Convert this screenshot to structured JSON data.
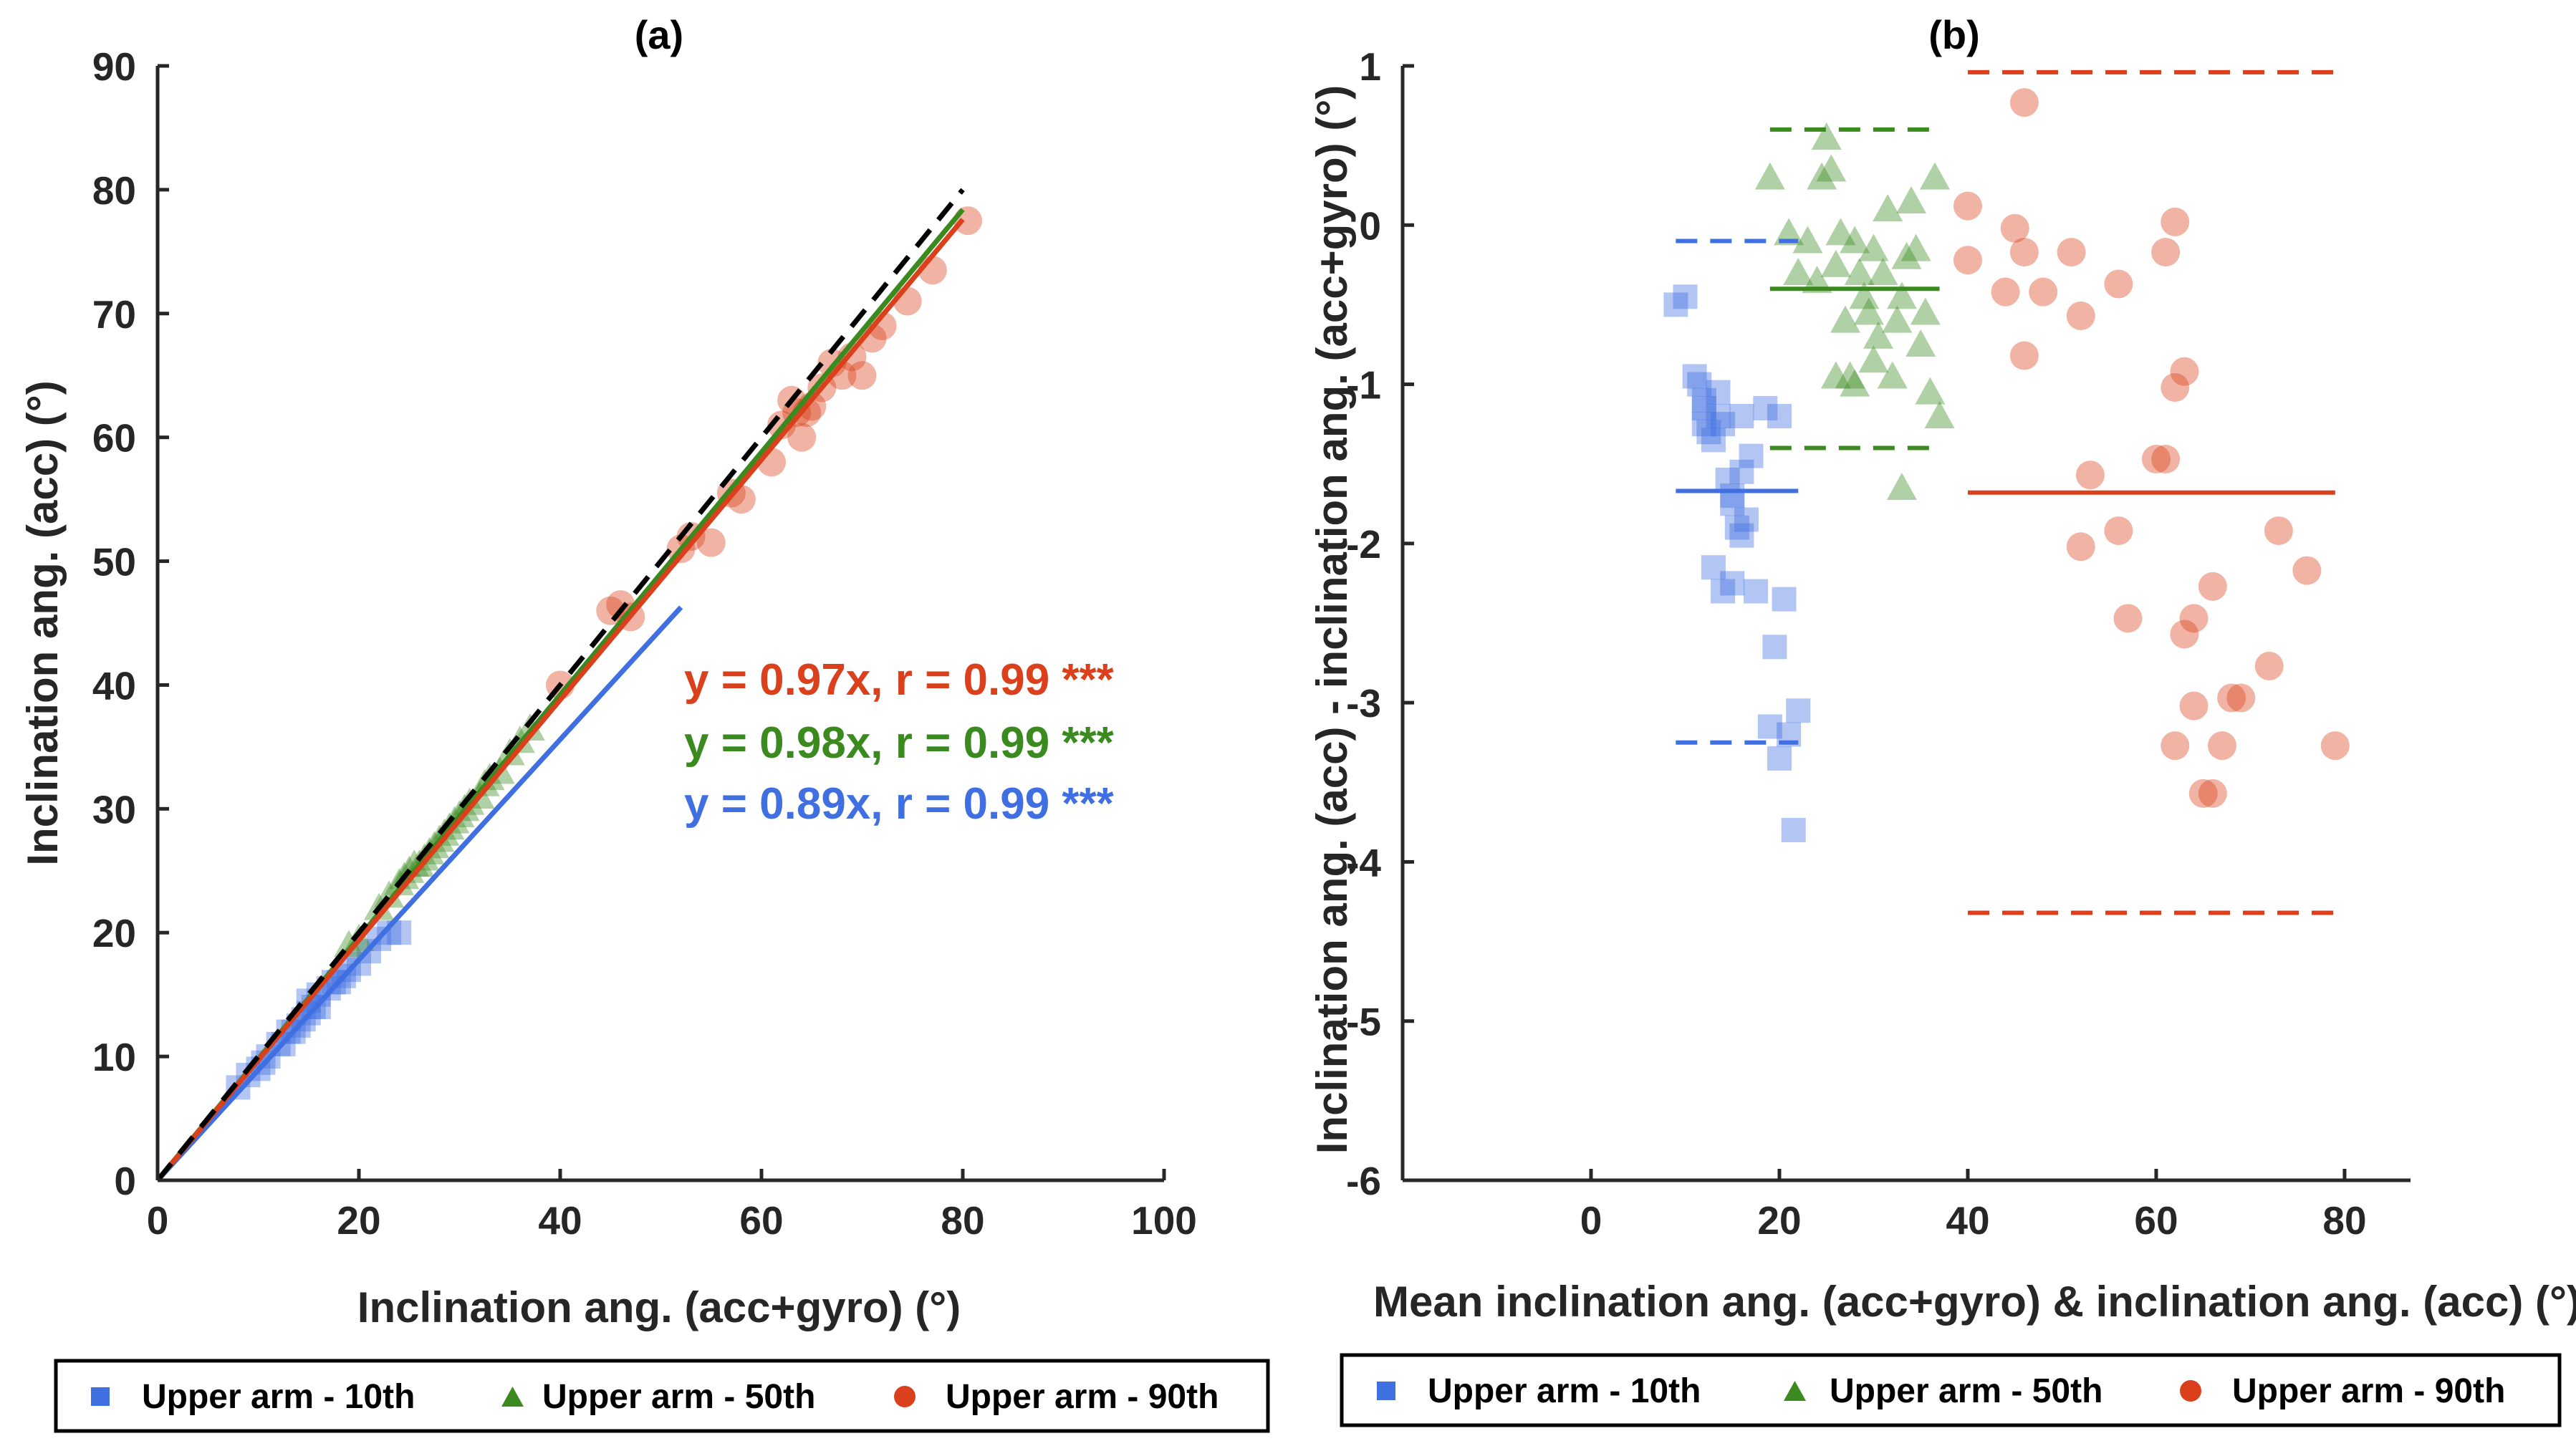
{
  "chart_data": [
    {
      "panel": "(a)",
      "type": "scatter",
      "title": "(a)",
      "xlabel": "Inclination ang. (acc+gyro) (°)",
      "ylabel": "Inclination ang. (acc) (°)",
      "xlim": [
        0,
        100
      ],
      "ylim": [
        0,
        90
      ],
      "xticks": [
        0,
        20,
        40,
        60,
        80,
        100
      ],
      "yticks": [
        0,
        10,
        20,
        30,
        40,
        50,
        60,
        70,
        80,
        90
      ],
      "grid": false,
      "legend_position": "bottom",
      "identity_line": {
        "name": "y = x",
        "style": "dashed",
        "color": "#000000",
        "x": [
          0,
          80
        ],
        "y": [
          0,
          80
        ]
      },
      "series": [
        {
          "name": "Upper arm - 10th",
          "marker": "square",
          "color": "#3F6FE0",
          "fit": {
            "slope": 0.89,
            "r": 0.99,
            "x_range": [
              0,
              52
            ]
          },
          "equation": "y = 0.89x, r = 0.99 ***",
          "x": [
            8,
            9,
            10,
            11,
            12,
            12.5,
            13,
            14,
            14.5,
            15,
            15.5,
            16,
            16,
            17,
            18,
            18.5,
            19,
            20,
            21,
            22,
            23,
            24,
            10.5,
            13.5,
            15,
            17.5
          ],
          "y": [
            7.5,
            8.5,
            9,
            10,
            11,
            11,
            12,
            12.5,
            13,
            13.5,
            14,
            14,
            15,
            15.5,
            16,
            16.5,
            17,
            17.5,
            18.5,
            19.5,
            20,
            20,
            9.5,
            12,
            14.5,
            16
          ]
        },
        {
          "name": "Upper arm - 50th",
          "marker": "triangle",
          "color": "#3A8A1F",
          "fit": {
            "slope": 0.98,
            "r": 0.99,
            "x_range": [
              0,
              80
            ]
          },
          "equation": "y = 0.98x, r = 0.99 ***",
          "x": [
            19,
            20,
            22,
            23,
            24,
            24.5,
            25,
            25.5,
            26,
            26.5,
            27,
            27.5,
            28,
            28.5,
            29,
            29.5,
            30,
            30.5,
            31,
            32,
            32.5,
            33,
            34,
            35,
            36,
            37
          ],
          "y": [
            19,
            19.5,
            22,
            23,
            24,
            24.5,
            25,
            25.5,
            25.5,
            26,
            26.5,
            27,
            27.5,
            28,
            28.5,
            29,
            29.5,
            30,
            30.5,
            31,
            32,
            32.5,
            33,
            34.5,
            35.5,
            36.5
          ]
        },
        {
          "name": "Upper arm - 90th",
          "marker": "circle",
          "color": "#D9401B",
          "fit": {
            "slope": 0.97,
            "r": 0.99,
            "x_range": [
              0,
              80
            ]
          },
          "equation": "y = 0.97x, r = 0.99 ***",
          "x": [
            40,
            45,
            46,
            47,
            52,
            53,
            55,
            57,
            58,
            61,
            62,
            63,
            63.5,
            64,
            64.5,
            65,
            66,
            67,
            68,
            69,
            70,
            71,
            72,
            74.5,
            77,
            80.5
          ],
          "y": [
            40,
            46,
            46.5,
            45.5,
            51,
            52,
            51.5,
            55.5,
            55,
            58,
            61,
            63,
            62,
            60,
            62,
            62.5,
            64,
            66,
            65,
            66.5,
            65,
            68,
            69,
            71,
            73.5,
            77.5
          ]
        }
      ],
      "legend": [
        "Upper arm - 10th",
        "Upper arm - 50th",
        "Upper arm - 90th"
      ]
    },
    {
      "panel": "(b)",
      "type": "scatter",
      "title": "(b)",
      "xlabel": "Mean inclination ang. (acc+gyro) & inclination ang. (acc) (°)",
      "ylabel": "Inclination ang. (acc) - inclination ang. (acc+gyro) (°)",
      "xlim": [
        -20,
        87
      ],
      "ylim": [
        -6,
        1
      ],
      "xticks": [
        0,
        20,
        40,
        60,
        80
      ],
      "yticks": [
        -6,
        -5,
        -4,
        -3,
        -2,
        -1,
        0,
        1
      ],
      "grid": false,
      "legend_position": "bottom",
      "series": [
        {
          "name": "Upper arm - 10th",
          "marker": "square",
          "color": "#3F6FE0",
          "mean": -1.67,
          "loa": [
            -3.25,
            -0.1
          ],
          "line_x_range": [
            9,
            22
          ],
          "x": [
            9,
            10,
            11,
            11.5,
            12,
            12.5,
            12,
            13,
            13.5,
            14,
            14.5,
            15,
            15,
            15.5,
            16,
            16.5,
            13,
            14,
            15,
            12,
            16,
            17,
            18.5,
            20,
            20.5,
            19.5,
            19,
            17.5,
            21,
            22,
            20,
            21.5,
            13.5,
            16
          ],
          "y": [
            -0.5,
            -0.45,
            -0.95,
            -1.0,
            -1.1,
            -1.3,
            -1.25,
            -1.35,
            -1.2,
            -1.25,
            -1.6,
            -1.7,
            -1.75,
            -1.9,
            -1.95,
            -1.85,
            -2.15,
            -2.3,
            -2.25,
            -1.15,
            -1.2,
            -1.45,
            -1.15,
            -1.2,
            -2.35,
            -2.65,
            -3.15,
            -2.3,
            -3.2,
            -3.05,
            -3.35,
            -3.8,
            -1.05,
            -1.55
          ]
        },
        {
          "name": "Upper arm - 50th",
          "marker": "triangle",
          "color": "#3A8A1F",
          "mean": -0.4,
          "loa": [
            -1.4,
            0.6
          ],
          "line_x_range": [
            19,
            37
          ],
          "x": [
            19,
            21,
            22,
            23,
            24,
            24.5,
            25,
            25.5,
            26,
            26.5,
            27,
            27.5,
            28,
            28.5,
            29,
            29.5,
            30,
            30.5,
            31,
            31.5,
            32,
            32.5,
            33,
            33.5,
            34,
            34.5,
            35,
            35.5,
            36,
            36.5,
            37,
            26,
            28,
            30,
            33
          ],
          "y": [
            0.3,
            -0.05,
            -0.3,
            -0.1,
            -0.35,
            0.3,
            0.55,
            0.35,
            -0.25,
            -0.05,
            -0.6,
            -0.95,
            -0.1,
            -0.3,
            -0.45,
            -0.55,
            -0.85,
            -0.7,
            -0.3,
            0.1,
            -0.95,
            -0.6,
            -0.45,
            -0.2,
            0.15,
            -0.15,
            -0.75,
            -0.55,
            -1.05,
            0.3,
            -1.2,
            -0.95,
            -1.0,
            -0.15,
            -1.65
          ]
        },
        {
          "name": "Upper arm - 90th",
          "marker": "circle",
          "color": "#D9401B",
          "mean": -1.68,
          "loa": [
            -4.32,
            0.96
          ],
          "line_x_range": [
            40,
            79
          ],
          "x": [
            40,
            40,
            44,
            45,
            46,
            46,
            46,
            48,
            51,
            52,
            53,
            52,
            56,
            56,
            57,
            60,
            61,
            61,
            62,
            62,
            63,
            63,
            64,
            65,
            66,
            66,
            67,
            68,
            69,
            72,
            73,
            76,
            79,
            62,
            64
          ],
          "y": [
            0.12,
            -0.22,
            -0.42,
            -0.02,
            -0.17,
            0.77,
            -0.82,
            -0.42,
            -0.17,
            -0.57,
            -1.57,
            -2.02,
            -0.37,
            -1.92,
            -2.47,
            -1.47,
            -1.47,
            -0.17,
            -1.02,
            0.02,
            -0.92,
            -2.57,
            -2.47,
            -3.57,
            -3.57,
            -2.27,
            -3.27,
            -2.97,
            -2.97,
            -2.77,
            -1.92,
            -2.17,
            -3.27,
            -3.27,
            -3.02
          ]
        }
      ],
      "legend": [
        "Upper arm - 10th",
        "Upper arm - 50th",
        "Upper arm - 90th"
      ]
    }
  ]
}
